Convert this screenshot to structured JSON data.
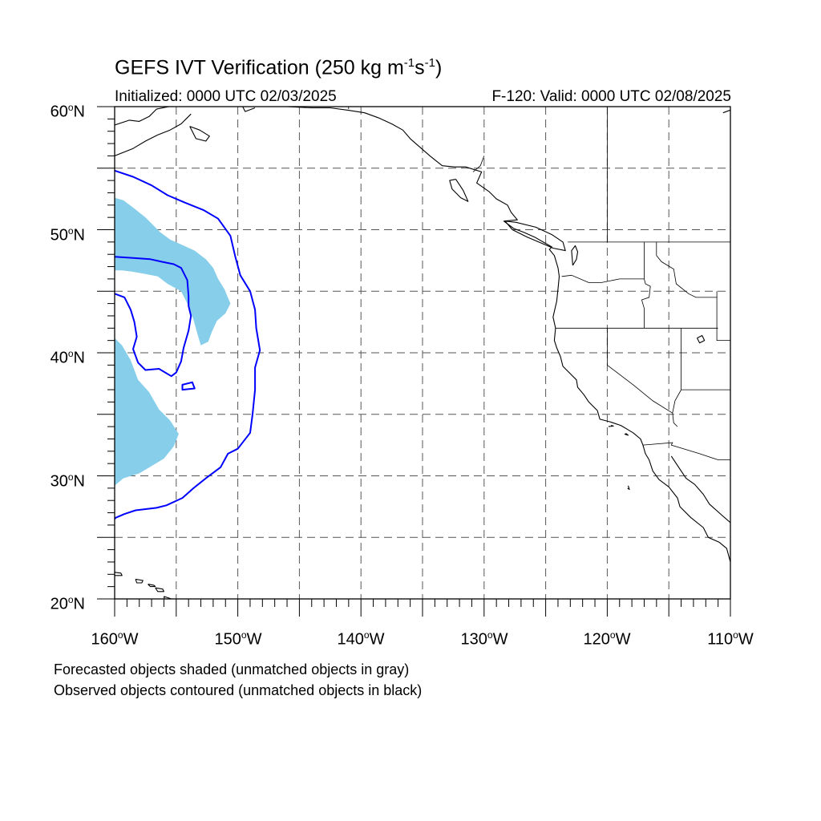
{
  "title": {
    "prefix": "GEFS IVT Verification (250 kg m",
    "exp1": "-1",
    "mid": "s",
    "exp2": "-1",
    "suffix": ")"
  },
  "initialized": "Initialized: 0000 UTC 02/03/2025",
  "valid": "F-120: Valid: 0000 UTC 02/08/2025",
  "map_extent": {
    "lon": [
      -160,
      -110
    ],
    "lat": [
      20,
      60
    ]
  },
  "grid": {
    "lon_step": 5,
    "lat_step": 5,
    "style": "dashed"
  },
  "lat_labels": [
    {
      "lat": 60,
      "text": "60",
      "hem": "N"
    },
    {
      "lat": 50,
      "text": "50",
      "hem": "N"
    },
    {
      "lat": 40,
      "text": "40",
      "hem": "N"
    },
    {
      "lat": 30,
      "text": "30",
      "hem": "N"
    },
    {
      "lat": 20,
      "text": "20",
      "hem": "N"
    }
  ],
  "lon_labels": [
    {
      "lon": -160,
      "text": "160",
      "hem": "W"
    },
    {
      "lon": -150,
      "text": "150",
      "hem": "W"
    },
    {
      "lon": -140,
      "text": "140",
      "hem": "W"
    },
    {
      "lon": -130,
      "text": "130",
      "hem": "W"
    },
    {
      "lon": -120,
      "text": "120",
      "hem": "W"
    },
    {
      "lon": -110,
      "text": "110",
      "hem": "W"
    }
  ],
  "colors": {
    "forecast_fill": "#87ceeb",
    "observed_contour": "#0000ff",
    "coastline": "#000000",
    "grid": "#555555"
  },
  "notes": {
    "line1": "Forecasted objects shaded (unmatched objects in gray)",
    "line2": "Observed objects contoured (unmatched objects in black)"
  },
  "forecast_objects": [
    [
      [
        -160,
        52.6
      ],
      [
        -159.3,
        52.4
      ],
      [
        -158.5,
        51.8
      ],
      [
        -157.5,
        51
      ],
      [
        -156.3,
        49.8
      ],
      [
        -155.5,
        49.2
      ],
      [
        -154.6,
        48.8
      ],
      [
        -153.5,
        48.3
      ],
      [
        -152.6,
        47.6
      ],
      [
        -152,
        46.9
      ],
      [
        -151.6,
        46
      ],
      [
        -151.1,
        45.2
      ],
      [
        -150.6,
        44
      ],
      [
        -151,
        43.2
      ],
      [
        -151.7,
        42.6
      ],
      [
        -152.1,
        41.7
      ],
      [
        -152.4,
        40.9
      ],
      [
        -153,
        40.6
      ],
      [
        -153.3,
        41.6
      ],
      [
        -153.6,
        42.7
      ],
      [
        -154.1,
        44
      ],
      [
        -154.6,
        45
      ],
      [
        -155.7,
        45.6
      ],
      [
        -156.5,
        46.2
      ],
      [
        -157.5,
        46.4
      ],
      [
        -158.6,
        46.6
      ],
      [
        -159.4,
        46.7
      ],
      [
        -160,
        46.7
      ]
    ],
    [
      [
        -160,
        41.2
      ],
      [
        -159.4,
        40.6
      ],
      [
        -158.7,
        39.4
      ],
      [
        -158.1,
        37.8
      ],
      [
        -157.2,
        36.8
      ],
      [
        -156.4,
        35.4
      ],
      [
        -155.5,
        34.5
      ],
      [
        -154.8,
        33.4
      ],
      [
        -155.2,
        32.4
      ],
      [
        -156,
        31.4
      ],
      [
        -157,
        30.8
      ],
      [
        -158,
        30.2
      ],
      [
        -159.3,
        29.8
      ],
      [
        -160,
        29.2
      ]
    ]
  ],
  "observed_objects": [
    [
      [
        -160,
        54.8
      ],
      [
        -158.5,
        54.3
      ],
      [
        -157,
        53.6
      ],
      [
        -155.7,
        52.8
      ],
      [
        -154.3,
        52.2
      ],
      [
        -152.8,
        51.6
      ],
      [
        -151.6,
        50.9
      ],
      [
        -150.6,
        49.5
      ],
      [
        -150.2,
        47.8
      ],
      [
        -149.8,
        46.3
      ],
      [
        -149,
        45
      ],
      [
        -148.6,
        43.5
      ],
      [
        -148.5,
        42
      ],
      [
        -148.2,
        40.2
      ],
      [
        -148.6,
        38.8
      ],
      [
        -148.6,
        37
      ],
      [
        -148.8,
        35
      ],
      [
        -149,
        33.5
      ],
      [
        -150,
        32.2
      ],
      [
        -150.8,
        31.8
      ],
      [
        -151.4,
        30.7
      ],
      [
        -152.6,
        29.8
      ],
      [
        -153.6,
        29
      ],
      [
        -154.5,
        28.2
      ],
      [
        -155.8,
        27.6
      ],
      [
        -156.6,
        27.4
      ],
      [
        -158.3,
        27.2
      ],
      [
        -159.2,
        26.9
      ],
      [
        -159.9,
        26.6
      ],
      [
        -160,
        26.5
      ]
    ],
    [
      [
        -160,
        47.8
      ],
      [
        -158.5,
        47.7
      ],
      [
        -157.1,
        47.6
      ],
      [
        -156.2,
        47.4
      ],
      [
        -155.2,
        47.2
      ],
      [
        -154.6,
        46.9
      ],
      [
        -154.1,
        45.9
      ],
      [
        -154,
        44.6
      ],
      [
        -154,
        43.8
      ],
      [
        -153.8,
        43
      ],
      [
        -154,
        41.8
      ],
      [
        -154.4,
        40.4
      ],
      [
        -154.6,
        39.3
      ],
      [
        -155,
        38.4
      ],
      [
        -155.4,
        38.1
      ],
      [
        -156.4,
        38.7
      ],
      [
        -157.5,
        38.6
      ],
      [
        -158.1,
        39.2
      ],
      [
        -158.5,
        40.3
      ],
      [
        -158.2,
        41.3
      ],
      [
        -158.4,
        42.5
      ],
      [
        -158.7,
        43.5
      ],
      [
        -159.2,
        44.5
      ],
      [
        -160,
        44.8
      ]
    ],
    [
      [
        -154.5,
        37.4
      ],
      [
        -153.7,
        37.6
      ],
      [
        -153.5,
        37.1
      ],
      [
        -154.5,
        37
      ]
    ]
  ],
  "coastlines": [
    [
      [
        -160,
        58.5
      ],
      [
        -158.8,
        58.9
      ],
      [
        -158,
        58.8
      ],
      [
        -157.2,
        59.2
      ],
      [
        -156.6,
        59.8
      ],
      [
        -155.6,
        60
      ]
    ],
    [
      [
        -160,
        56
      ],
      [
        -158.5,
        56.6
      ],
      [
        -157.5,
        57.2
      ],
      [
        -156.5,
        57.7
      ],
      [
        -155.5,
        58.1
      ],
      [
        -154.6,
        58.6
      ],
      [
        -153.8,
        59.4
      ]
    ],
    [
      [
        -153.9,
        58.4
      ],
      [
        -153.1,
        58.1
      ],
      [
        -152.3,
        57.6
      ],
      [
        -152.6,
        57.2
      ],
      [
        -153.4,
        57.4
      ],
      [
        -153.9,
        58.4
      ]
    ],
    [
      [
        -149.6,
        60
      ],
      [
        -149.4,
        59.6
      ],
      [
        -148.6,
        59.9
      ]
    ],
    [
      [
        -146,
        60
      ],
      [
        -144,
        59.9
      ],
      [
        -142.5,
        59.9
      ],
      [
        -141,
        59.7
      ],
      [
        -139.7,
        59.5
      ],
      [
        -138.6,
        59.1
      ],
      [
        -137.5,
        58.6
      ],
      [
        -136.6,
        58.1
      ],
      [
        -136,
        57.4
      ],
      [
        -135.2,
        56.7
      ],
      [
        -134.4,
        56
      ],
      [
        -133.4,
        55.2
      ],
      [
        -132.4,
        55.1
      ],
      [
        -131.5,
        55.1
      ],
      [
        -130.2,
        54.7
      ],
      [
        -130.6,
        53.8
      ],
      [
        -129.6,
        53.1
      ],
      [
        -129,
        52.5
      ],
      [
        -128.1,
        52
      ],
      [
        -127.8,
        51.4
      ],
      [
        -127.3,
        50.8
      ],
      [
        -128.4,
        50.7
      ],
      [
        -127.6,
        50.1
      ],
      [
        -126.8,
        49.8
      ],
      [
        -125.9,
        49.4
      ],
      [
        -125.2,
        49
      ],
      [
        -124.5,
        48.6
      ],
      [
        -124.7,
        48.4
      ],
      [
        -124.3,
        47.9
      ],
      [
        -124,
        46.9
      ],
      [
        -123.9,
        46.2
      ],
      [
        -124,
        45.2
      ],
      [
        -124.1,
        44.2
      ],
      [
        -124.4,
        42.9
      ],
      [
        -124.2,
        42
      ],
      [
        -124.3,
        41
      ],
      [
        -124.1,
        40.4
      ],
      [
        -123.8,
        39.7
      ],
      [
        -123.6,
        38.9
      ],
      [
        -123,
        38.3
      ],
      [
        -122.5,
        37.8
      ],
      [
        -122.4,
        37.2
      ],
      [
        -121.9,
        36.6
      ],
      [
        -121.5,
        36
      ],
      [
        -120.8,
        35.3
      ],
      [
        -120.6,
        34.6
      ],
      [
        -119.8,
        34.4
      ],
      [
        -118.9,
        34.1
      ],
      [
        -118.4,
        33.8
      ],
      [
        -117.9,
        33.5
      ],
      [
        -117.3,
        33
      ],
      [
        -117.1,
        32.5
      ],
      [
        -116.9,
        31.8
      ],
      [
        -116.6,
        31.3
      ],
      [
        -116.3,
        30.4
      ],
      [
        -115.8,
        29.7
      ],
      [
        -115,
        29.1
      ],
      [
        -114.3,
        28.2
      ],
      [
        -114.1,
        27.5
      ],
      [
        -113.2,
        26.6
      ],
      [
        -112.2,
        25.8
      ],
      [
        -111.8,
        25
      ],
      [
        -110.9,
        24.6
      ],
      [
        -110.3,
        24.1
      ],
      [
        -110,
        23
      ]
    ],
    [
      [
        -125.1,
        48.8
      ],
      [
        -124.4,
        48.5
      ],
      [
        -123.4,
        48.3
      ],
      [
        -123.6,
        49
      ],
      [
        -124.5,
        49.6
      ],
      [
        -125.8,
        50.2
      ],
      [
        -127.4,
        50.6
      ],
      [
        -128.3,
        50.7
      ],
      [
        -127.7,
        50
      ],
      [
        -126.5,
        49.4
      ],
      [
        -125.1,
        48.8
      ]
    ],
    [
      [
        -132.3,
        54.1
      ],
      [
        -131.7,
        53.2
      ],
      [
        -131.3,
        52.3
      ],
      [
        -131.9,
        52.6
      ],
      [
        -132.6,
        53.3
      ],
      [
        -132.8,
        54
      ],
      [
        -132.3,
        54.1
      ]
    ],
    [
      [
        -122.8,
        47.1
      ],
      [
        -122.5,
        47.6
      ],
      [
        -122.4,
        48.2
      ],
      [
        -122.6,
        48.7
      ],
      [
        -122.9,
        48.3
      ],
      [
        -122.8,
        47.1
      ]
    ],
    [
      [
        -114.8,
        31.6
      ],
      [
        -114.2,
        30.7
      ],
      [
        -113.6,
        29.8
      ],
      [
        -112.9,
        29.3
      ],
      [
        -112.2,
        28.5
      ],
      [
        -111.7,
        27.7
      ],
      [
        -110.8,
        26.9
      ],
      [
        -110,
        26.2
      ]
    ],
    [
      [
        -110.6,
        59.5
      ],
      [
        -109.8,
        59.8
      ],
      [
        -109.5,
        60
      ]
    ],
    [
      [
        -119.9,
        34
      ],
      [
        -119.5,
        34.05
      ],
      [
        -119.7,
        34.1
      ]
    ],
    [
      [
        -118.6,
        33.4
      ],
      [
        -118.3,
        33.3
      ],
      [
        -118.5,
        33.45
      ]
    ],
    [
      [
        -118.3,
        29.2
      ],
      [
        -118.2,
        28.9
      ],
      [
        -118.35,
        29
      ]
    ],
    [
      [
        -160.3,
        22.2
      ],
      [
        -159.5,
        22.1
      ],
      [
        -159.4,
        21.9
      ],
      [
        -160.1,
        21.9
      ],
      [
        -160.3,
        22.2
      ]
    ],
    [
      [
        -158.3,
        21.6
      ],
      [
        -157.7,
        21.5
      ],
      [
        -157.8,
        21.3
      ],
      [
        -158.2,
        21.3
      ],
      [
        -158.3,
        21.6
      ]
    ],
    [
      [
        -157.3,
        21.2
      ],
      [
        -156.8,
        21.1
      ],
      [
        -156.7,
        21
      ],
      [
        -157.1,
        21
      ],
      [
        -157.3,
        21.2
      ]
    ],
    [
      [
        -156.7,
        20.9
      ],
      [
        -156.1,
        20.8
      ],
      [
        -156,
        20.6
      ],
      [
        -156.5,
        20.6
      ],
      [
        -156.7,
        20.9
      ]
    ],
    [
      [
        -156,
        20.2
      ],
      [
        -155.1,
        19.9
      ],
      [
        -155.3,
        19.2
      ],
      [
        -155.8,
        19.4
      ],
      [
        -156,
        20.2
      ]
    ],
    [
      [
        -112.7,
        41.2
      ],
      [
        -112.3,
        41.4
      ],
      [
        -112.1,
        41
      ],
      [
        -112.5,
        40.8
      ],
      [
        -112.7,
        41.2
      ]
    ]
  ],
  "borders": [
    [
      [
        -123.2,
        49
      ],
      [
        -120,
        49
      ],
      [
        -117,
        49
      ],
      [
        -114,
        49
      ],
      [
        -110,
        49
      ]
    ],
    [
      [
        -141,
        60
      ],
      [
        -141,
        59.8
      ]
    ],
    [
      [
        -130,
        56
      ],
      [
        -130.3,
        55.2
      ],
      [
        -130.9,
        54.7
      ]
    ],
    [
      [
        -123.7,
        46.2
      ],
      [
        -122.9,
        46.3
      ],
      [
        -121.5,
        45.7
      ],
      [
        -120.5,
        45.7
      ],
      [
        -119,
        46
      ],
      [
        -117,
        46
      ]
    ],
    [
      [
        -124.2,
        42
      ],
      [
        -120,
        42
      ],
      [
        -117,
        42
      ],
      [
        -114,
        42
      ],
      [
        -111,
        42
      ]
    ],
    [
      [
        -117,
        49
      ],
      [
        -117,
        46
      ],
      [
        -116.9,
        45.6
      ],
      [
        -116.5,
        45.4
      ],
      [
        -116.6,
        44.5
      ],
      [
        -117.2,
        44.3
      ],
      [
        -117,
        43.6
      ],
      [
        -117,
        42
      ]
    ],
    [
      [
        -116,
        49
      ],
      [
        -116,
        47.9
      ],
      [
        -115.6,
        47.4
      ],
      [
        -114.6,
        46.8
      ],
      [
        -114.4,
        45.6
      ],
      [
        -113.4,
        44.8
      ],
      [
        -112.8,
        44.5
      ],
      [
        -111.1,
        44.5
      ]
    ],
    [
      [
        -111.1,
        45
      ],
      [
        -111.1,
        41
      ],
      [
        -110,
        41
      ]
    ],
    [
      [
        -120,
        60
      ],
      [
        -120,
        49
      ]
    ],
    [
      [
        -120,
        42
      ],
      [
        -120,
        39
      ],
      [
        -117.9,
        37.4
      ],
      [
        -116.3,
        36.1
      ],
      [
        -114.7,
        35.1
      ],
      [
        -114.6,
        34.3
      ],
      [
        -114.3,
        34
      ]
    ],
    [
      [
        -114,
        42
      ],
      [
        -114,
        37
      ],
      [
        -114.5,
        36.1
      ],
      [
        -114.7,
        35.1
      ]
    ],
    [
      [
        -114,
        37
      ],
      [
        -110,
        37
      ]
    ],
    [
      [
        -117.1,
        32.5
      ],
      [
        -114.7,
        32.7
      ],
      [
        -114.8,
        32.5
      ],
      [
        -112.5,
        31.8
      ],
      [
        -111,
        31.3
      ],
      [
        -110,
        31.3
      ]
    ]
  ]
}
